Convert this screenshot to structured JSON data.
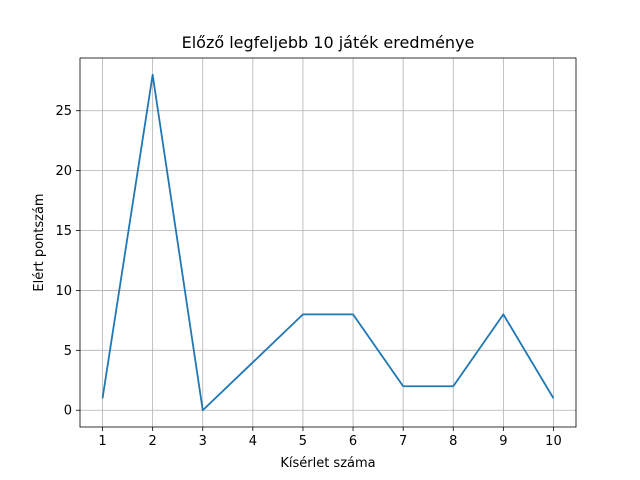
{
  "chart_data": {
    "type": "line",
    "title": "Előző legfeljebb 10 játék eredménye",
    "xlabel": "Kísérlet száma",
    "ylabel": "Elért pontszám",
    "x": [
      1,
      2,
      3,
      4,
      5,
      6,
      7,
      8,
      9,
      10
    ],
    "series": [
      {
        "values": [
          1,
          28,
          0,
          4,
          8,
          8,
          2,
          2,
          8,
          1
        ]
      }
    ],
    "xticks": [
      "1",
      "2",
      "3",
      "4",
      "5",
      "6",
      "7",
      "8",
      "9",
      "10"
    ],
    "yticks": [
      "0",
      "5",
      "10",
      "15",
      "20",
      "25"
    ],
    "xlim": [
      0.55,
      10.45
    ],
    "ylim": [
      -1.4,
      29.4
    ],
    "grid": true,
    "line_color": "#1f77b4",
    "grid_color": "#b0b0b0"
  }
}
